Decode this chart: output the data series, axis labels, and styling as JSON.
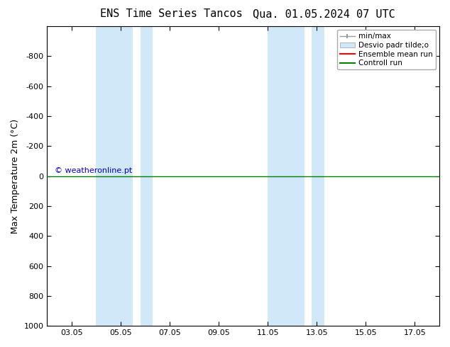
{
  "title_left": "ENS Time Series Tancos",
  "title_right": "Qua. 01.05.2024 07 UTC",
  "ylabel": "Max Temperature 2m (°C)",
  "ylim_bottom": 1000,
  "ylim_top": -1000,
  "xtick_labels": [
    "03.05",
    "05.05",
    "07.05",
    "09.05",
    "11.05",
    "13.05",
    "15.05",
    "17.05"
  ],
  "xtick_positions": [
    1,
    3,
    5,
    7,
    9,
    11,
    13,
    15
  ],
  "xlim_left": 0,
  "xlim_right": 16,
  "ytick_positions": [
    -800,
    -600,
    -400,
    -200,
    0,
    200,
    400,
    600,
    800,
    1000
  ],
  "ytick_labels": [
    "-800",
    "-600",
    "-400",
    "-200",
    "0",
    "200",
    "400",
    "600",
    "800",
    "1000"
  ],
  "shaded_bands": [
    [
      2.0,
      3.5
    ],
    [
      3.8,
      4.3
    ],
    [
      9.0,
      10.5
    ],
    [
      10.8,
      11.3
    ]
  ],
  "shaded_color": "#d0e8f8",
  "control_run_color": "#008000",
  "ensemble_mean_color": "#ff0000",
  "watermark": "© weatheronline.pt",
  "watermark_color": "#0000cc",
  "background_color": "#ffffff",
  "legend_label_minmax": "min/max",
  "legend_label_desvio": "Desvio padr tilde;o",
  "legend_label_ensemble": "Ensemble mean run",
  "legend_label_control": "Controll run",
  "title_fontsize": 11,
  "tick_fontsize": 8,
  "ylabel_fontsize": 9
}
